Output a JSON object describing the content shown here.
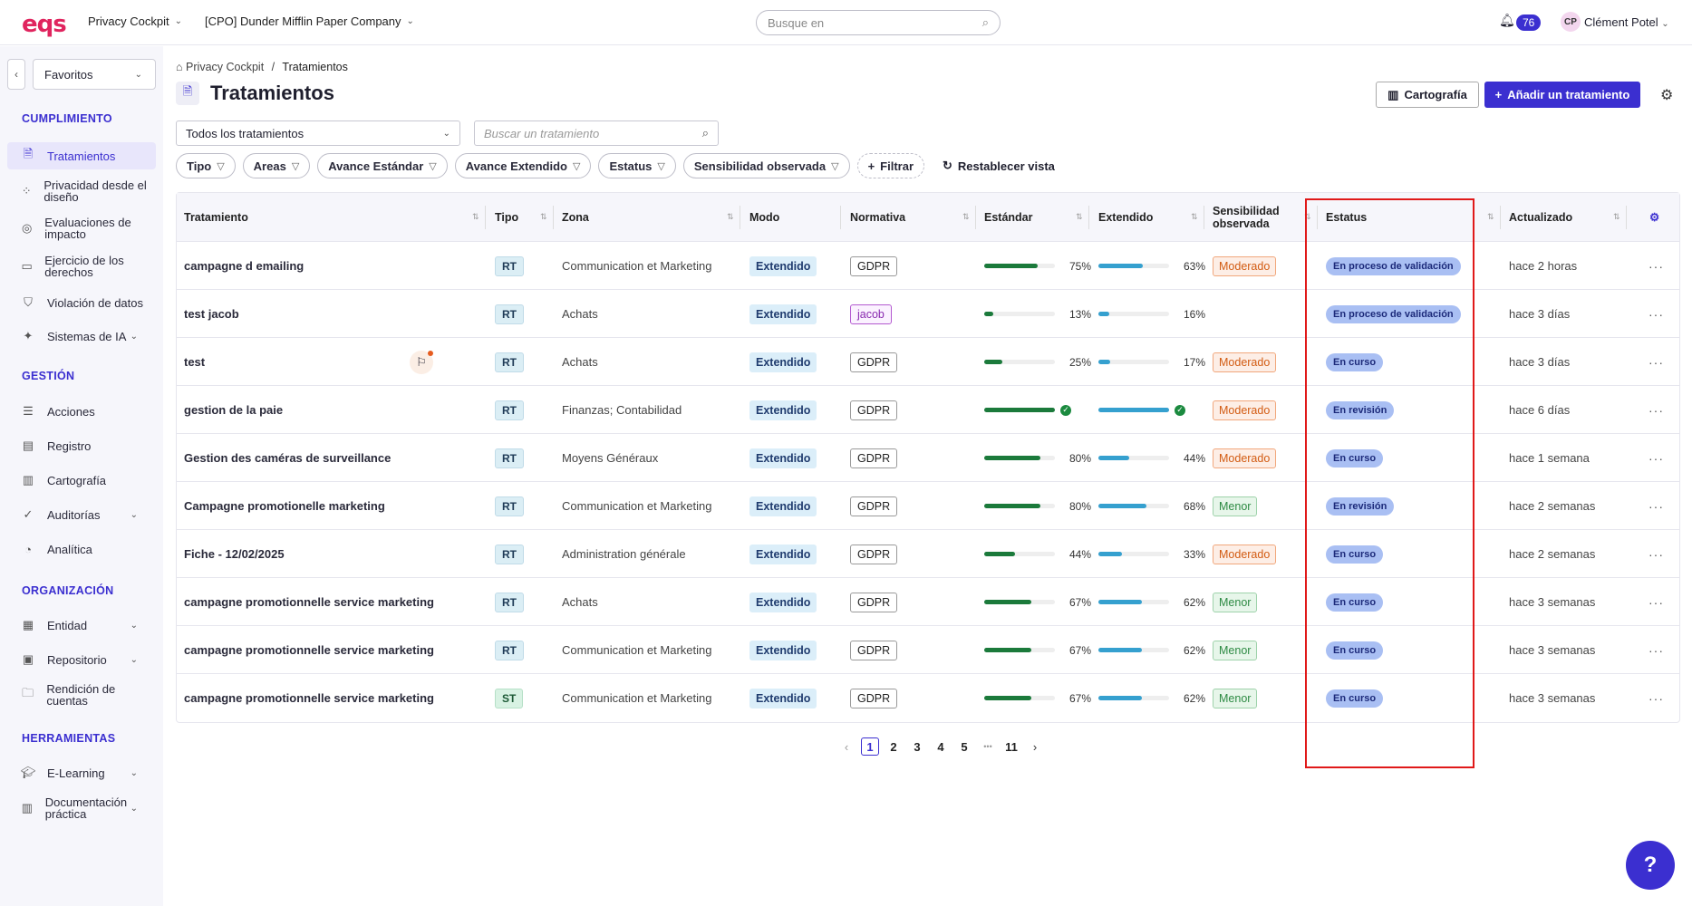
{
  "topbar": {
    "logo": "eqs",
    "app_selector": "Privacy Cockpit",
    "company_selector": "[CPO] Dunder Mifflin Paper Company",
    "search_placeholder": "Busque en",
    "notifications_count": "76",
    "user_initials": "CP",
    "user_name": "Clément Potel"
  },
  "sidebar": {
    "favorites": "Favoritos",
    "sections": [
      {
        "title": "CUMPLIMIENTO"
      },
      {
        "title": "GESTIÓN"
      },
      {
        "title": "ORGANIZACIÓN"
      },
      {
        "title": "HERRAMIENTAS"
      }
    ],
    "items": [
      {
        "label": "Tratamientos"
      },
      {
        "label": "Privacidad desde el diseño"
      },
      {
        "label": "Evaluaciones de impacto"
      },
      {
        "label": "Ejercicio de los derechos"
      },
      {
        "label": "Violación de datos"
      },
      {
        "label": "Sistemas de IA"
      },
      {
        "label": "Acciones"
      },
      {
        "label": "Registro"
      },
      {
        "label": "Cartografía"
      },
      {
        "label": "Auditorías"
      },
      {
        "label": "Analítica"
      },
      {
        "label": "Entidad"
      },
      {
        "label": "Repositorio"
      },
      {
        "label": "Rendición de cuentas"
      },
      {
        "label": "E-Learning"
      },
      {
        "label": "Documentación práctica"
      }
    ]
  },
  "breadcrumb": {
    "root": "Privacy Cockpit",
    "sep": "/",
    "current": "Tratamientos"
  },
  "page": {
    "title": "Tratamientos",
    "cartography_button": "Cartografía",
    "add_button": "Añadir un tratamiento",
    "view_select": "Todos los tratamientos",
    "search_placeholder": "Buscar un tratamiento"
  },
  "filters": {
    "chips": [
      "Tipo",
      "Areas",
      "Avance Estándar",
      "Avance Extendido",
      "Estatus",
      "Sensibilidad observada"
    ],
    "add_filter": "Filtrar",
    "reset": "Restablecer vista"
  },
  "table": {
    "headers": {
      "tratamiento": "Tratamiento",
      "tipo": "Tipo",
      "zona": "Zona",
      "modo": "Modo",
      "normativa": "Normativa",
      "estandar": "Estándar",
      "extendido": "Extendido",
      "sensibilidad": "Sensibilidad observada",
      "estatus": "Estatus",
      "actualizado": "Actualizado"
    },
    "rows": [
      {
        "name": "campagne d emailing",
        "tipo": "RT",
        "zona": "Communication et Marketing",
        "modo": "Extendido",
        "normativa": "GDPR",
        "std": 75,
        "std_label": "75%",
        "ext": 63,
        "ext_label": "63%",
        "sens": "Moderado",
        "estatus": "En proceso de validación",
        "updated": "hace 2 horas"
      },
      {
        "name": "test jacob",
        "tipo": "RT",
        "zona": "Achats",
        "modo": "Extendido",
        "normativa": "jacob",
        "std": 13,
        "std_label": "13%",
        "ext": 16,
        "ext_label": "16%",
        "sens": "",
        "estatus": "En proceso de validación",
        "updated": "hace 3 días"
      },
      {
        "name": "test",
        "tipo": "RT",
        "zona": "Achats",
        "modo": "Extendido",
        "normativa": "GDPR",
        "std": 25,
        "std_label": "25%",
        "ext": 17,
        "ext_label": "17%",
        "sens": "Moderado",
        "estatus": "En curso",
        "updated": "hace 3 días"
      },
      {
        "name": "gestion de la paie",
        "tipo": "RT",
        "zona": "Finanzas; Contabilidad",
        "modo": "Extendido",
        "normativa": "GDPR",
        "std": 100,
        "std_label": "",
        "ext": 100,
        "ext_label": "",
        "sens": "Moderado",
        "estatus": "En revisión",
        "updated": "hace 6 días"
      },
      {
        "name": "Gestion des caméras de surveillance",
        "tipo": "RT",
        "zona": "Moyens Généraux",
        "modo": "Extendido",
        "normativa": "GDPR",
        "std": 80,
        "std_label": "80%",
        "ext": 44,
        "ext_label": "44%",
        "sens": "Moderado",
        "estatus": "En curso",
        "updated": "hace 1 semana"
      },
      {
        "name": "Campagne promotionelle marketing",
        "tipo": "RT",
        "zona": "Communication et Marketing",
        "modo": "Extendido",
        "normativa": "GDPR",
        "std": 80,
        "std_label": "80%",
        "ext": 68,
        "ext_label": "68%",
        "sens": "Menor",
        "estatus": "En revisión",
        "updated": "hace 2 semanas"
      },
      {
        "name": "Fiche - 12/02/2025",
        "tipo": "RT",
        "zona": "Administration générale",
        "modo": "Extendido",
        "normativa": "GDPR",
        "std": 44,
        "std_label": "44%",
        "ext": 33,
        "ext_label": "33%",
        "sens": "Moderado",
        "estatus": "En curso",
        "updated": "hace 2 semanas"
      },
      {
        "name": "campagne promotionnelle service marketing",
        "tipo": "RT",
        "zona": "Achats",
        "modo": "Extendido",
        "normativa": "GDPR",
        "std": 67,
        "std_label": "67%",
        "ext": 62,
        "ext_label": "62%",
        "sens": "Menor",
        "estatus": "En curso",
        "updated": "hace 3 semanas"
      },
      {
        "name": "campagne promotionnelle service marketing",
        "tipo": "RT",
        "zona": "Communication et Marketing",
        "modo": "Extendido",
        "normativa": "GDPR",
        "std": 67,
        "std_label": "67%",
        "ext": 62,
        "ext_label": "62%",
        "sens": "Menor",
        "estatus": "En curso",
        "updated": "hace 3 semanas"
      },
      {
        "name": "campagne promotionnelle service marketing",
        "tipo": "ST",
        "zona": "Communication et Marketing",
        "modo": "Extendido",
        "normativa": "GDPR",
        "std": 67,
        "std_label": "67%",
        "ext": 62,
        "ext_label": "62%",
        "sens": "Menor",
        "estatus": "En curso",
        "updated": "hace 3 semanas"
      }
    ]
  },
  "pagination": {
    "pages": [
      "1",
      "2",
      "3",
      "4",
      "5"
    ],
    "ellipsis": "•••",
    "last": "11",
    "current": "1"
  },
  "colors": {
    "accent": "#3b2fd0",
    "standard_bar": "#1b7a3b",
    "extended_bar": "#35a0cf",
    "highlight": "#e01919"
  }
}
